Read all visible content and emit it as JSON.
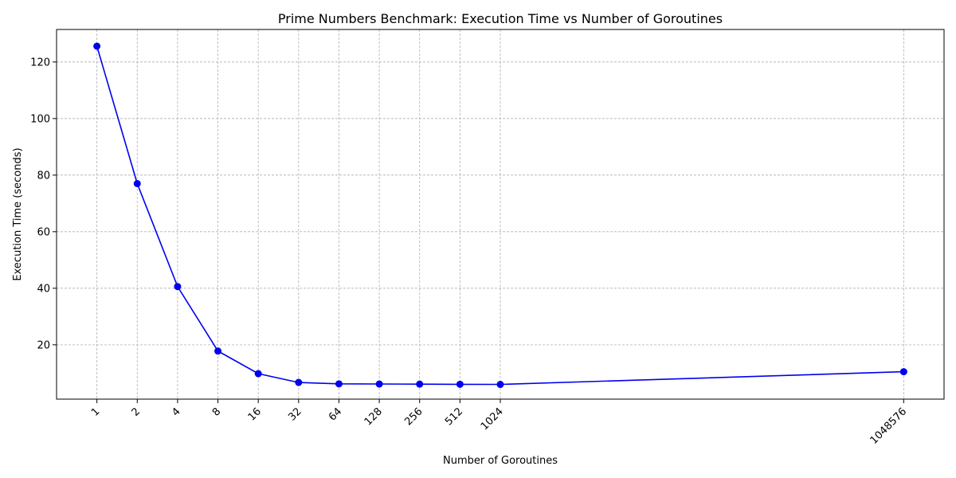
{
  "chart_data": {
    "type": "line",
    "title": "Prime Numbers Benchmark: Execution Time vs Number of Goroutines",
    "xlabel": "Number of Goroutines",
    "ylabel": "Execution Time (seconds)",
    "x_scale": "log2",
    "x": [
      1,
      2,
      4,
      8,
      16,
      32,
      64,
      128,
      256,
      512,
      1024,
      1048576
    ],
    "x_tick_labels": [
      "1",
      "2",
      "4",
      "8",
      "16",
      "32",
      "64",
      "128",
      "256",
      "512",
      "1024",
      "1048576"
    ],
    "y_ticks": [
      20,
      40,
      60,
      80,
      100,
      120
    ],
    "ylim": [
      0.8,
      131.5
    ],
    "grid": true,
    "series": [
      {
        "values": [
          125.6,
          77.0,
          40.6,
          17.8,
          9.8,
          6.7,
          6.2,
          6.15,
          6.1,
          6.05,
          6.0,
          10.5
        ],
        "color": "#0000ee",
        "marker": "circle"
      }
    ]
  }
}
